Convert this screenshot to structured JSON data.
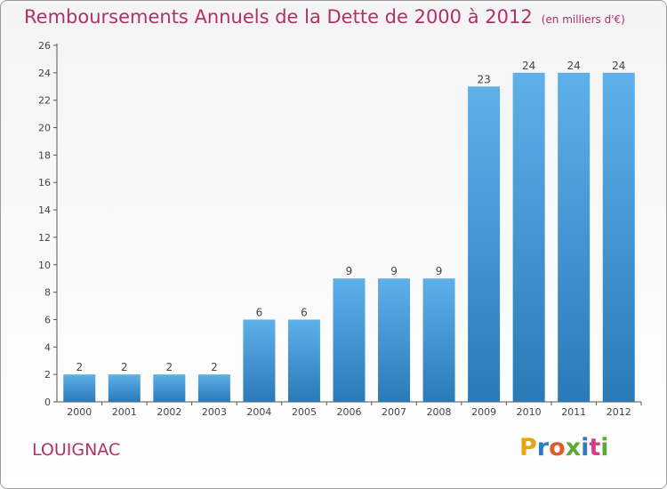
{
  "title": "Remboursements Annuels de la Dette de 2000 à 2012",
  "subtitle": "(en milliers d'€)",
  "commune": "LOUIGNAC",
  "logo_text": "Proxiti",
  "logo_letter_colors": [
    "#e8a317",
    "#2e7bbf",
    "#e05a2a",
    "#5aaa3a",
    "#2e7bbf",
    "#d83b85",
    "#5aaa3a"
  ],
  "colors": {
    "accent": "#b0306a",
    "bar_light": "#5eb0ea",
    "bar_dark": "#2a7ab8",
    "axis": "#555555"
  },
  "chart_data": {
    "type": "bar",
    "categories": [
      "2000",
      "2001",
      "2002",
      "2003",
      "2004",
      "2005",
      "2006",
      "2007",
      "2008",
      "2009",
      "2010",
      "2011",
      "2012"
    ],
    "values": [
      2,
      2,
      2,
      2,
      6,
      6,
      9,
      9,
      9,
      23,
      24,
      24,
      24
    ],
    "data_labels": [
      "2",
      "2",
      "2",
      "2",
      "6",
      "6",
      "9",
      "9",
      "9",
      "23",
      "24",
      "24",
      "24"
    ],
    "yticks": [
      "0",
      "2",
      "4",
      "6",
      "8",
      "10",
      "12",
      "14",
      "16",
      "18",
      "20",
      "22",
      "24",
      "26"
    ],
    "ylim": [
      0,
      26
    ],
    "title": "Remboursements Annuels de la Dette de 2000 à 2012",
    "subtitle": "(en milliers d'€)",
    "xlabel": "",
    "ylabel": "",
    "grid": false
  }
}
